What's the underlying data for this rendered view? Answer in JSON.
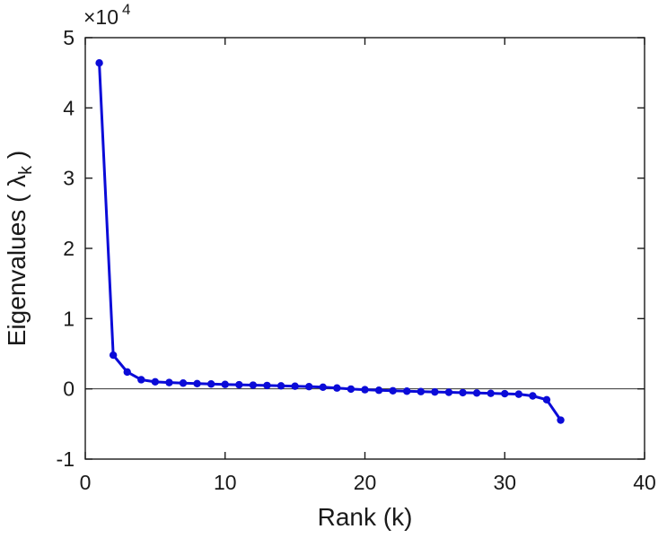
{
  "colors": {
    "background": "#ffffff",
    "axis": "#1a1a1a",
    "zero_line": "#333333",
    "line": "#0b0bd8"
  },
  "chart_data": {
    "type": "line",
    "title": "",
    "xlabel": "Rank (k)",
    "ylabel": {
      "prefix": "Eigenvalues ( ",
      "symbol": "λ",
      "subscript": "k",
      "suffix": " )"
    },
    "y_multiplier": {
      "base": "×10",
      "exponent": "4",
      "factor": 10000
    },
    "xlim": [
      0,
      40
    ],
    "ylim": [
      -10000,
      50000
    ],
    "xticks": [
      0,
      10,
      20,
      30,
      40
    ],
    "xtick_labels": [
      "0",
      "10",
      "20",
      "30",
      "40"
    ],
    "yticks": [
      -10000,
      0,
      10000,
      20000,
      30000,
      40000,
      50000
    ],
    "ytick_labels": [
      "-1",
      "0",
      "1",
      "2",
      "3",
      "4",
      "5"
    ],
    "grid": false,
    "zero_line": true,
    "legend": null,
    "series": [
      {
        "name": "eigenvalues",
        "color": "#0b0bd8",
        "marker": "circle",
        "x": [
          1,
          2,
          3,
          4,
          5,
          6,
          7,
          8,
          9,
          10,
          11,
          12,
          13,
          14,
          15,
          16,
          17,
          18,
          19,
          20,
          21,
          22,
          23,
          24,
          25,
          26,
          27,
          28,
          29,
          30,
          31,
          32,
          33,
          34
        ],
        "y": [
          46400,
          4800,
          2400,
          1300,
          1000,
          900,
          820,
          750,
          690,
          630,
          580,
          530,
          480,
          430,
          380,
          320,
          240,
          120,
          -30,
          -120,
          -200,
          -270,
          -330,
          -390,
          -440,
          -490,
          -540,
          -590,
          -640,
          -690,
          -760,
          -1000,
          -1550,
          -4450
        ]
      }
    ]
  }
}
